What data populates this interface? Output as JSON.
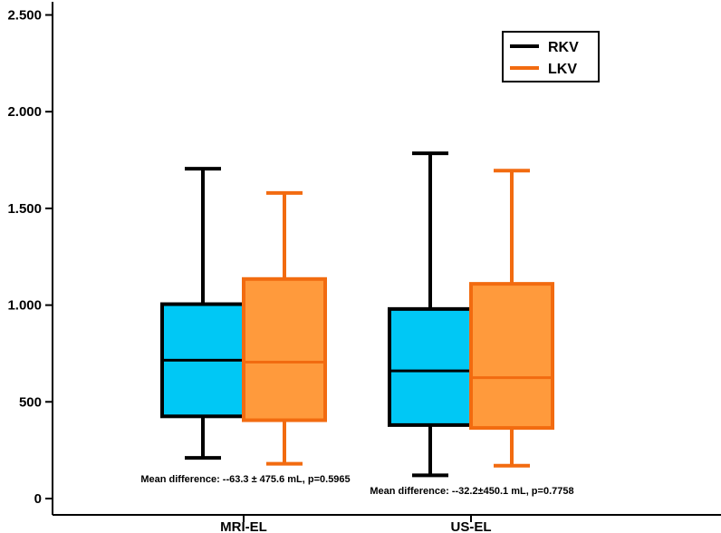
{
  "chart_data": {
    "type": "box",
    "title": "",
    "xlabel": "",
    "ylabel": "",
    "ylim": [
      0,
      2500
    ],
    "yticks": [
      {
        "value": 0,
        "label": "0"
      },
      {
        "value": 500,
        "label": "500"
      },
      {
        "value": 1000,
        "label": "1.000"
      },
      {
        "value": 1500,
        "label": "1.500"
      },
      {
        "value": 2000,
        "label": "2.000"
      },
      {
        "value": 2500,
        "label": "2.500"
      }
    ],
    "categories": [
      "MRI-EL",
      "US-EL"
    ],
    "series": [
      {
        "name": "RKV",
        "fill": "#00c8f5",
        "stroke": "#000000",
        "boxes": [
          {
            "min": 210,
            "q1": 425,
            "median": 715,
            "q3": 1005,
            "max": 1705
          },
          {
            "min": 120,
            "q1": 380,
            "median": 660,
            "q3": 980,
            "max": 1785
          }
        ]
      },
      {
        "name": "LKV",
        "fill": "#ff9a3c",
        "stroke": "#f26b10",
        "boxes": [
          {
            "min": 180,
            "q1": 405,
            "median": 705,
            "q3": 1135,
            "max": 1580
          },
          {
            "min": 170,
            "q1": 365,
            "median": 625,
            "q3": 1110,
            "max": 1695
          }
        ]
      }
    ],
    "annotations": [
      "Mean difference: --63.3 ± 475.6 mL, p=0.5965",
      "Mean difference: --32.2±450.1  mL, p=0.7758"
    ],
    "legend": {
      "position": "top-right",
      "entries": [
        {
          "label": "RKV",
          "color": "#000000"
        },
        {
          "label": "LKV",
          "color": "#f26b10"
        }
      ]
    }
  }
}
